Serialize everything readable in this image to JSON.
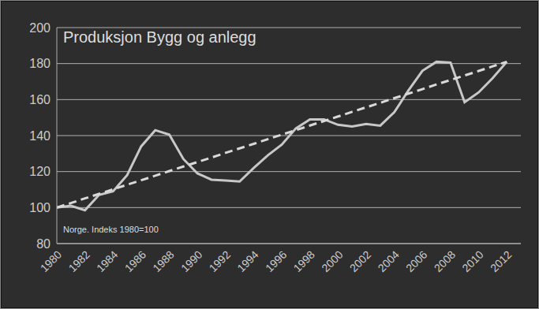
{
  "chart_data": {
    "type": "line",
    "title": "Produksjon Bygg og anlegg",
    "annotation": "Norge. Indeks 1980=100",
    "x": [
      1980,
      1981,
      1982,
      1983,
      1984,
      1985,
      1986,
      1987,
      1988,
      1989,
      1990,
      1991,
      1992,
      1993,
      1994,
      1995,
      1996,
      1997,
      1998,
      1999,
      2000,
      2001,
      2002,
      2003,
      2004,
      2005,
      2006,
      2007,
      2008,
      2009,
      2010,
      2011,
      2012
    ],
    "series": [
      {
        "values": [
          100,
          101,
          98.5,
          107,
          109,
          118,
          134,
          143,
          140.5,
          127,
          119,
          115.5,
          115,
          114.5,
          122,
          129,
          135,
          144,
          149,
          149,
          146,
          145,
          146.5,
          145.5,
          153,
          165,
          176,
          181,
          180.5,
          158.5,
          164,
          172,
          181
        ],
        "color": "#c8c8c8",
        "line_style": "solid"
      },
      {
        "values": [
          100,
          102.5,
          105.1,
          107.6,
          110.1,
          112.7,
          115.2,
          117.7,
          120.3,
          122.8,
          125.3,
          127.8,
          130.4,
          132.9,
          135.4,
          138,
          140.5,
          143,
          145.6,
          148.1,
          150.6,
          153.2,
          155.7,
          158.2,
          160.8,
          163.3,
          165.8,
          168.4,
          170.9,
          173.4,
          175.9,
          178.5,
          181
        ],
        "color": "#d9d9d9",
        "line_style": "dashed"
      }
    ],
    "xlim": [
      1980,
      2013
    ],
    "xticks": [
      1980,
      1982,
      1984,
      1986,
      1988,
      1990,
      1992,
      1994,
      1996,
      1998,
      2000,
      2002,
      2004,
      2006,
      2008,
      2010,
      2012
    ],
    "ylim": [
      80,
      200
    ],
    "yticks": [
      80,
      100,
      120,
      140,
      160,
      180,
      200
    ],
    "grid": true
  }
}
